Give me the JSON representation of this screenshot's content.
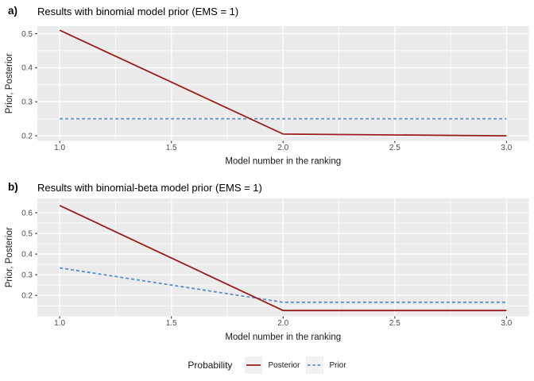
{
  "colors": {
    "panel_background": "#ebebeb",
    "gridline": "#ffffff",
    "tick_label": "#4d4d4d",
    "tick_mark": "#333333",
    "axis_title": "#1a1a1a",
    "posterior": "#9b1c1c",
    "prior": "#5b8dc8",
    "legend_key_background": "#f1f1f1"
  },
  "legend": {
    "title": "Probability",
    "items": [
      {
        "label": "Posterior",
        "color": "#9b1c1c",
        "dash": "solid"
      },
      {
        "label": "Prior",
        "color": "#5b8dc8",
        "dash": "dashed"
      }
    ]
  },
  "chart_data": [
    {
      "type": "line",
      "tag": "a)",
      "title": "Results with binomial model prior (EMS = 1)",
      "xlabel": "Model number in the ranking",
      "ylabel": "Prior, Posterior",
      "xlim": [
        0.9,
        3.1
      ],
      "ylim": [
        0.185,
        0.522
      ],
      "xticks": [
        1.0,
        1.5,
        2.0,
        2.5,
        3.0
      ],
      "xtick_labels": [
        "1.0",
        "1.5",
        "2.0",
        "2.5",
        "3.0"
      ],
      "yticks": [
        0.2,
        0.3,
        0.4,
        0.5
      ],
      "ytick_labels": [
        "0.2",
        "0.3",
        "0.4",
        "0.5"
      ],
      "grid": true,
      "series": [
        {
          "name": "Prior",
          "color": "#5b8dc8",
          "dash": "dashed",
          "points": [
            [
              1,
              0.25
            ],
            [
              2,
              0.25
            ],
            [
              3,
              0.25
            ]
          ]
        },
        {
          "name": "Posterior",
          "color": "#9b1c1c",
          "dash": "solid",
          "points": [
            [
              1,
              0.51
            ],
            [
              2,
              0.205
            ],
            [
              3,
              0.2
            ]
          ]
        }
      ]
    },
    {
      "type": "line",
      "tag": "b)",
      "title": "Results with binomial-beta model prior (EMS = 1)",
      "xlabel": "Model number in the ranking",
      "ylabel": "Prior, Posterior",
      "xlim": [
        0.9,
        3.1
      ],
      "ylim": [
        0.099,
        0.669
      ],
      "xticks": [
        1.0,
        1.5,
        2.0,
        2.5,
        3.0
      ],
      "xtick_labels": [
        "1.0",
        "1.5",
        "2.0",
        "2.5",
        "3.0"
      ],
      "yticks": [
        0.2,
        0.3,
        0.4,
        0.5,
        0.6
      ],
      "ytick_labels": [
        "0.2",
        "0.3",
        "0.4",
        "0.5",
        "0.6"
      ],
      "grid": true,
      "series": [
        {
          "name": "Prior",
          "color": "#5b8dc8",
          "dash": "dashed",
          "points": [
            [
              1,
              0.333
            ],
            [
              2,
              0.167
            ],
            [
              3,
              0.167
            ]
          ]
        },
        {
          "name": "Posterior",
          "color": "#9b1c1c",
          "dash": "solid",
          "points": [
            [
              1,
              0.635
            ],
            [
              2,
              0.127
            ],
            [
              3,
              0.127
            ]
          ]
        }
      ]
    }
  ]
}
